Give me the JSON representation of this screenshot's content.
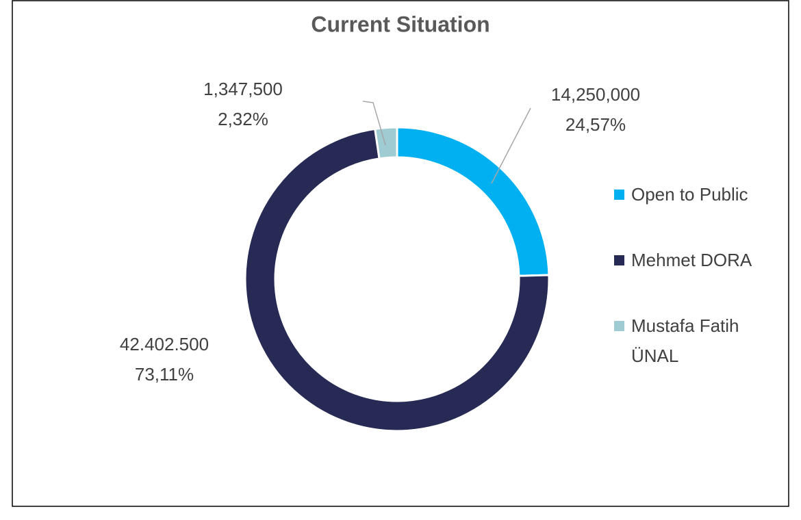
{
  "chart_data": {
    "type": "donut",
    "title": "Current Situation",
    "categories": [
      "Open to Public",
      "Mehmet DORA",
      "Mustafa Fatih ÜNAL"
    ],
    "values": [
      14250000,
      42402500,
      1347500
    ],
    "value_labels": [
      "14,250,000",
      "42.402.500",
      "1,347,500"
    ],
    "percent_labels": [
      "24,57%",
      "73,11%",
      "2,32%"
    ],
    "colors": [
      "#00b0f0",
      "#262a54",
      "#9fcbd3"
    ],
    "legend": "right"
  }
}
